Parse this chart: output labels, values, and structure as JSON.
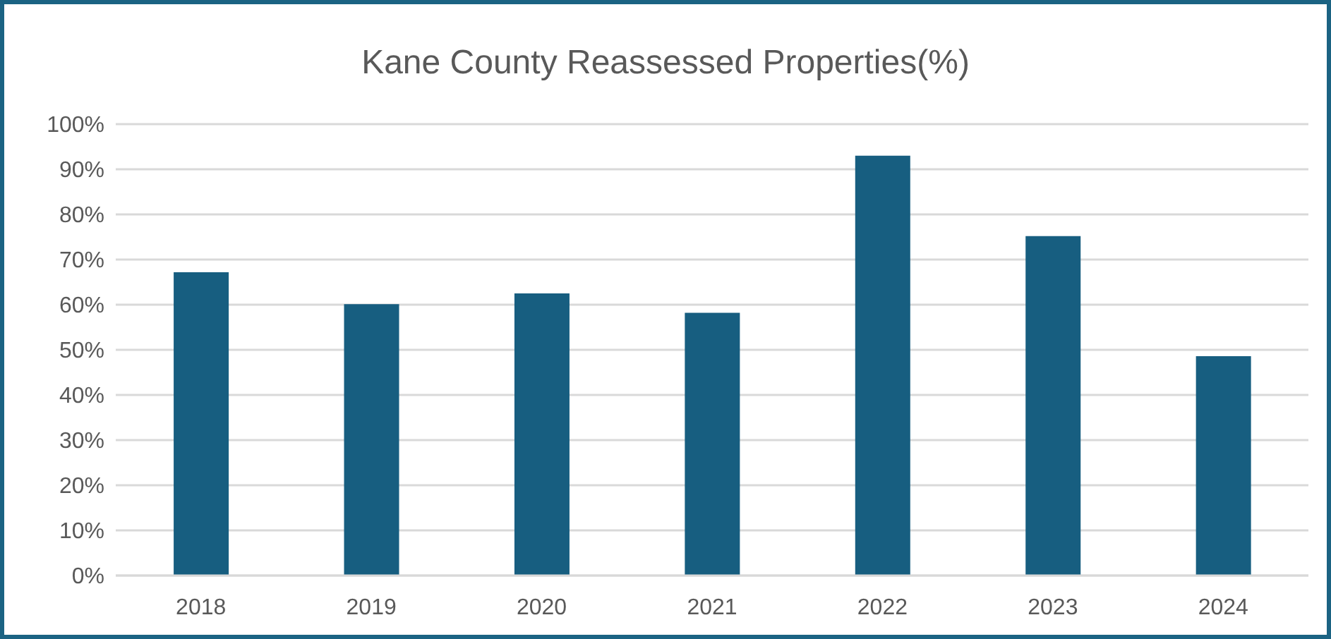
{
  "chart_data": {
    "type": "bar",
    "title": "Kane County Reassessed Properties(%)",
    "categories": [
      "2018",
      "2019",
      "2020",
      "2021",
      "2022",
      "2023",
      "2024"
    ],
    "values": [
      67.2,
      60.1,
      62.5,
      58.2,
      93.0,
      75.2,
      48.6
    ],
    "color": "#175e80",
    "ylim": [
      0,
      100
    ],
    "yticks": [
      {
        "value": 0,
        "label": "0%"
      },
      {
        "value": 10,
        "label": "10%"
      },
      {
        "value": 20,
        "label": "20%"
      },
      {
        "value": 30,
        "label": "30%"
      },
      {
        "value": 40,
        "label": "40%"
      },
      {
        "value": 50,
        "label": "50%"
      },
      {
        "value": 60,
        "label": "60%"
      },
      {
        "value": 70,
        "label": "70%"
      },
      {
        "value": 80,
        "label": "80%"
      },
      {
        "value": 90,
        "label": "90%"
      },
      {
        "value": 100,
        "label": "100%"
      }
    ],
    "grid": "y"
  }
}
